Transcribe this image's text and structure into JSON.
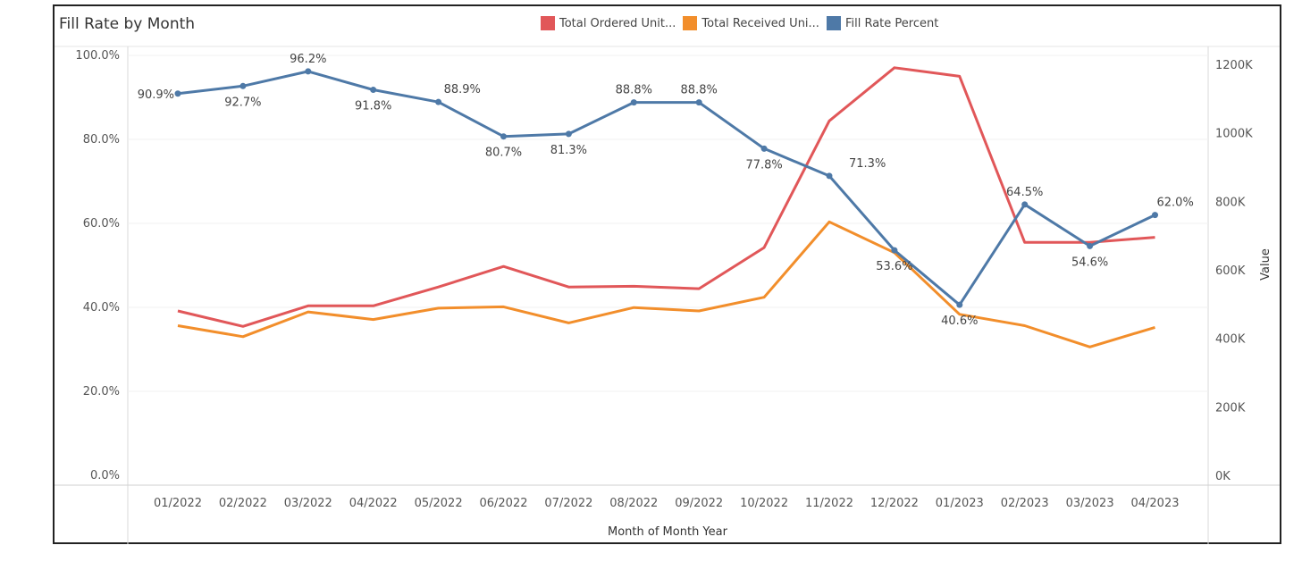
{
  "chart_data": {
    "type": "line",
    "title": "Fill Rate by Month",
    "xlabel": "Month of Month Year",
    "y2label": "Value",
    "categories": [
      "01/2022",
      "02/2022",
      "03/2022",
      "04/2022",
      "05/2022",
      "06/2022",
      "07/2022",
      "08/2022",
      "09/2022",
      "10/2022",
      "11/2022",
      "12/2022",
      "01/2023",
      "02/2023",
      "03/2023",
      "04/2023"
    ],
    "left_axis": {
      "ticks": [
        "0.0%",
        "20.0%",
        "40.0%",
        "60.0%",
        "80.0%",
        "100.0%"
      ],
      "ylim": [
        0,
        100
      ]
    },
    "right_axis": {
      "ticks": [
        "0K",
        "200K",
        "400K",
        "600K",
        "800K",
        "1000K",
        "1200K"
      ],
      "ylim": [
        0,
        1200
      ]
    },
    "series": [
      {
        "name": "Total Ordered Unit...",
        "axis": "right",
        "color": "#e15759",
        "values": [
          480,
          435,
          495,
          495,
          550,
          610,
          550,
          552,
          545,
          665,
          1035,
          1190,
          1165,
          680,
          680,
          695
        ]
      },
      {
        "name": "Total Received Uni...",
        "axis": "right",
        "color": "#f28e2b",
        "values": [
          437,
          405,
          477,
          455,
          488,
          492,
          445,
          490,
          480,
          520,
          740,
          650,
          470,
          437,
          375,
          432
        ]
      },
      {
        "name": "Fill Rate Percent",
        "axis": "left",
        "color": "#4e79a7",
        "markers": true,
        "values": [
          90.9,
          92.7,
          96.2,
          91.8,
          88.9,
          80.7,
          81.3,
          88.8,
          88.8,
          77.8,
          71.3,
          53.6,
          40.6,
          64.5,
          54.6,
          62.0
        ],
        "labels": [
          "90.9%",
          "92.7%",
          "96.2%",
          "91.8%",
          "88.9%",
          "80.7%",
          "81.3%",
          "88.8%",
          "88.8%",
          "77.8%",
          "71.3%",
          "53.6%",
          "40.6%",
          "64.5%",
          "54.6%",
          "62.0%"
        ]
      }
    ],
    "grid": true,
    "legend_position": "top"
  }
}
